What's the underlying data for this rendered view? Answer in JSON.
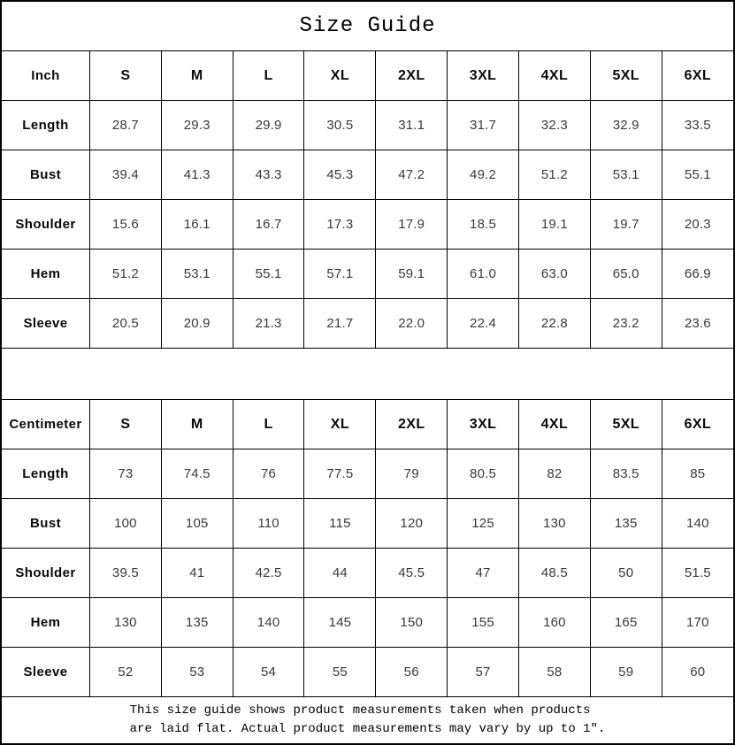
{
  "title": "Size Guide",
  "tables": [
    {
      "unit": "Inch",
      "sizes": [
        "S",
        "M",
        "L",
        "XL",
        "2XL",
        "3XL",
        "4XL",
        "5XL",
        "6XL"
      ],
      "rows": [
        {
          "label": "Length",
          "values": [
            "28.7",
            "29.3",
            "29.9",
            "30.5",
            "31.1",
            "31.7",
            "32.3",
            "32.9",
            "33.5"
          ]
        },
        {
          "label": "Bust",
          "values": [
            "39.4",
            "41.3",
            "43.3",
            "45.3",
            "47.2",
            "49.2",
            "51.2",
            "53.1",
            "55.1"
          ]
        },
        {
          "label": "Shoulder",
          "values": [
            "15.6",
            "16.1",
            "16.7",
            "17.3",
            "17.9",
            "18.5",
            "19.1",
            "19.7",
            "20.3"
          ]
        },
        {
          "label": "Hem",
          "values": [
            "51.2",
            "53.1",
            "55.1",
            "57.1",
            "59.1",
            "61.0",
            "63.0",
            "65.0",
            "66.9"
          ]
        },
        {
          "label": "Sleeve",
          "values": [
            "20.5",
            "20.9",
            "21.3",
            "21.7",
            "22.0",
            "22.4",
            "22.8",
            "23.2",
            "23.6"
          ]
        }
      ]
    },
    {
      "unit": "Centimeter",
      "sizes": [
        "S",
        "M",
        "L",
        "XL",
        "2XL",
        "3XL",
        "4XL",
        "5XL",
        "6XL"
      ],
      "rows": [
        {
          "label": "Length",
          "values": [
            "73",
            "74.5",
            "76",
            "77.5",
            "79",
            "80.5",
            "82",
            "83.5",
            "85"
          ]
        },
        {
          "label": "Bust",
          "values": [
            "100",
            "105",
            "110",
            "115",
            "120",
            "125",
            "130",
            "135",
            "140"
          ]
        },
        {
          "label": "Shoulder",
          "values": [
            "39.5",
            "41",
            "42.5",
            "44",
            "45.5",
            "47",
            "48.5",
            "50",
            "51.5"
          ]
        },
        {
          "label": "Hem",
          "values": [
            "130",
            "135",
            "140",
            "145",
            "150",
            "155",
            "160",
            "165",
            "170"
          ]
        },
        {
          "label": "Sleeve",
          "values": [
            "52",
            "53",
            "54",
            "55",
            "56",
            "57",
            "58",
            "59",
            "60"
          ]
        }
      ]
    }
  ],
  "footer": {
    "line1": "This size guide shows product measurements taken when products",
    "line2": "are laid flat. Actual product measurements may vary by up to 1″."
  },
  "colors": {
    "border": "#000000",
    "background": "#ffffff",
    "header_text": "#0a0a0a",
    "value_text": "#3a3a3a"
  }
}
